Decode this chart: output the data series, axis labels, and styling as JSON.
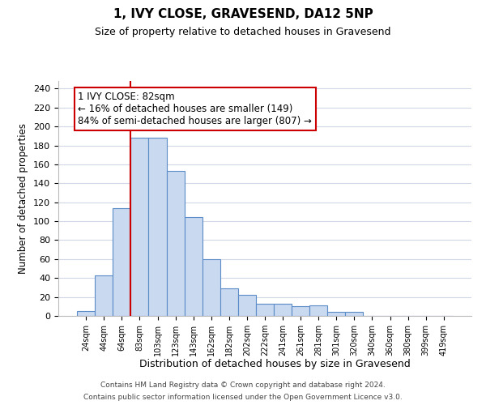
{
  "title": "1, IVY CLOSE, GRAVESEND, DA12 5NP",
  "subtitle": "Size of property relative to detached houses in Gravesend",
  "xlabel": "Distribution of detached houses by size in Gravesend",
  "ylabel": "Number of detached properties",
  "bar_labels": [
    "24sqm",
    "44sqm",
    "64sqm",
    "83sqm",
    "103sqm",
    "123sqm",
    "143sqm",
    "162sqm",
    "182sqm",
    "202sqm",
    "222sqm",
    "241sqm",
    "261sqm",
    "281sqm",
    "301sqm",
    "320sqm",
    "340sqm",
    "360sqm",
    "380sqm",
    "399sqm",
    "419sqm"
  ],
  "bar_values": [
    5,
    43,
    114,
    188,
    188,
    153,
    104,
    60,
    29,
    22,
    13,
    13,
    10,
    11,
    4,
    4,
    0,
    0,
    0,
    0,
    0
  ],
  "bar_color": "#c9d9f0",
  "bar_edge_color": "#5b8cc8",
  "vline_color": "#cc0000",
  "annotation_title": "1 IVY CLOSE: 82sqm",
  "annotation_line1": "← 16% of detached houses are smaller (149)",
  "annotation_line2": "84% of semi-detached houses are larger (807) →",
  "annotation_box_color": "#ffffff",
  "annotation_box_edge": "#cc0000",
  "ylim": [
    0,
    248
  ],
  "yticks": [
    0,
    20,
    40,
    60,
    80,
    100,
    120,
    140,
    160,
    180,
    200,
    220,
    240
  ],
  "footer1": "Contains HM Land Registry data © Crown copyright and database right 2024.",
  "footer2": "Contains public sector information licensed under the Open Government Licence v3.0.",
  "bg_color": "#ffffff",
  "grid_color": "#d0d8e8"
}
